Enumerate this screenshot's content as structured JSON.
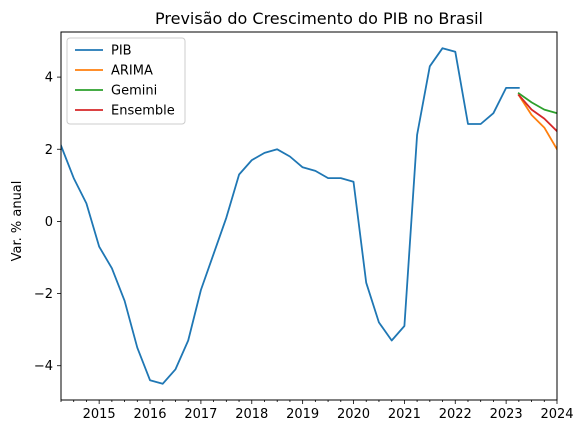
{
  "chart_data": {
    "type": "line",
    "title": "Previsão do Crescimento do PIB no Brasil",
    "xlabel": "",
    "ylabel": "Var. % anual",
    "xlim": [
      2014.25,
      2024.0
    ],
    "ylim": [
      -4.95,
      5.25
    ],
    "x_ticks": [
      {
        "value": 2015,
        "label": "2015"
      },
      {
        "value": 2016,
        "label": "2016"
      },
      {
        "value": 2017,
        "label": "2017"
      },
      {
        "value": 2018,
        "label": "2018"
      },
      {
        "value": 2019,
        "label": "2019"
      },
      {
        "value": 2020,
        "label": "2020"
      },
      {
        "value": 2021,
        "label": "2021"
      },
      {
        "value": 2022,
        "label": "2022"
      },
      {
        "value": 2023,
        "label": "2023"
      },
      {
        "value": 2024,
        "label": "2024"
      }
    ],
    "y_ticks": [
      {
        "value": 4,
        "label": "4"
      },
      {
        "value": 2,
        "label": "2"
      },
      {
        "value": 0,
        "label": "0"
      },
      {
        "value": -2,
        "label": "−2"
      },
      {
        "value": -4,
        "label": "−4"
      }
    ],
    "grid": false,
    "legend_position": "top-left",
    "series": [
      {
        "name": "PIB",
        "color": "#1f77b4",
        "x": [
          2014.25,
          2014.5,
          2014.75,
          2015.0,
          2015.25,
          2015.5,
          2015.75,
          2016.0,
          2016.25,
          2016.5,
          2016.75,
          2017.0,
          2017.25,
          2017.5,
          2017.75,
          2018.0,
          2018.25,
          2018.5,
          2018.75,
          2019.0,
          2019.25,
          2019.5,
          2019.75,
          2020.0,
          2020.25,
          2020.5,
          2020.75,
          2021.0,
          2021.25,
          2021.5,
          2021.75,
          2022.0,
          2022.25,
          2022.5,
          2022.75,
          2023.0,
          2023.25
        ],
        "y": [
          2.1,
          1.2,
          0.5,
          -0.7,
          -1.3,
          -2.2,
          -3.5,
          -4.4,
          -4.5,
          -4.1,
          -3.3,
          -1.9,
          -0.9,
          0.1,
          1.3,
          1.7,
          1.9,
          2.0,
          1.8,
          1.5,
          1.4,
          1.2,
          1.2,
          1.1,
          -1.7,
          -2.8,
          -3.3,
          -2.9,
          2.4,
          4.3,
          4.8,
          4.7,
          2.7,
          2.7,
          3.0,
          3.7,
          3.7
        ]
      },
      {
        "name": "ARIMA",
        "color": "#ff7f0e",
        "x": [
          2023.25,
          2023.5,
          2023.75,
          2024.0
        ],
        "y": [
          3.5,
          2.95,
          2.6,
          2.0
        ]
      },
      {
        "name": "Gemini",
        "color": "#2ca02c",
        "x": [
          2023.25,
          2023.5,
          2023.75,
          2024.0
        ],
        "y": [
          3.55,
          3.3,
          3.1,
          3.0
        ]
      },
      {
        "name": "Ensemble",
        "color": "#d62728",
        "x": [
          2023.25,
          2023.5,
          2023.75,
          2024.0
        ],
        "y": [
          3.5,
          3.1,
          2.85,
          2.5
        ]
      }
    ]
  }
}
